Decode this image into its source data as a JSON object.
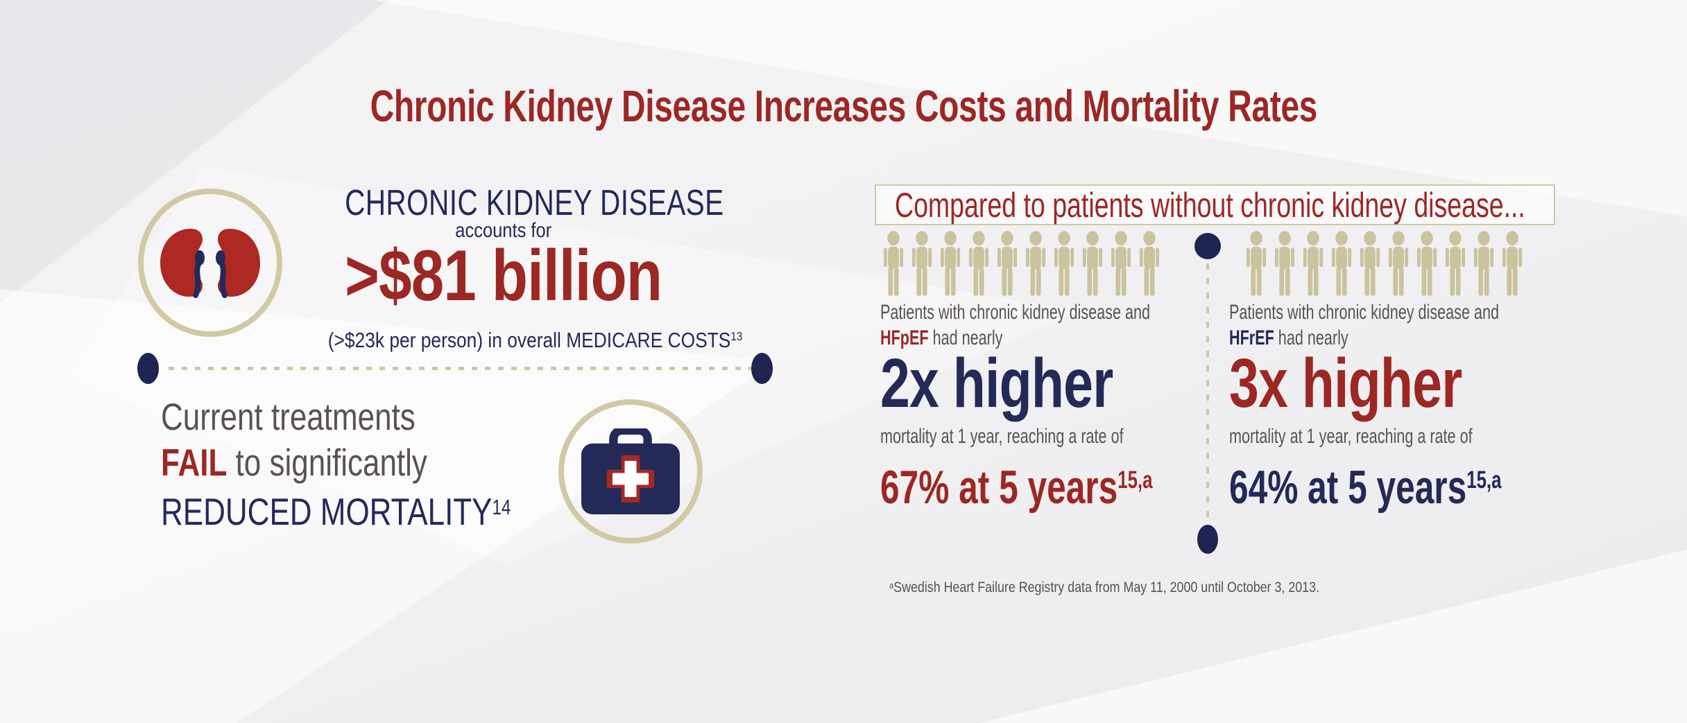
{
  "title": "Chronic Kidney Disease Increases Costs and Mortality Rates",
  "colors": {
    "accent_red": "#9C2723",
    "accent_navy": "#232A58",
    "body_gray": "#59524F",
    "tan": "#D0C7A2",
    "background": "#F1F1F3"
  },
  "icons": {
    "kidneys": "kidneys-icon",
    "medical_bag": "medical-bag-icon",
    "person": "person-icon"
  },
  "left_panel": {
    "ckd_heading": "CHRONIC KIDNEY DISEASE",
    "accounts_for": "accounts for",
    "big_cost": ">$81 billion",
    "cost_detail": "(>$23k per person) in overall MEDICARE COSTS",
    "cost_detail_sup": "13",
    "treatment_line1": "Current treatments",
    "treatment_fail": "FAIL",
    "treatment_line2_rest": " to significantly",
    "treatment_line3": "REDUCED MORTALITY",
    "treatment_line3_sup": "14"
  },
  "right_panel": {
    "box_heading": "Compared to patients without chronic kidney disease...",
    "person_icons": {
      "left_count": 10,
      "right_count": 10
    },
    "columns": [
      {
        "intro": "Patients with chronic kidney disease and",
        "term": "HFpEF",
        "intro_rest": " had nearly",
        "stat_big": "2x higher",
        "stat_detail": "mortality at 1 year, reaching a rate of",
        "stat_rate": "67% at 5 years",
        "stat_rate_sup": "15,a"
      },
      {
        "intro": "Patients with chronic kidney disease and",
        "term": "HFrEF",
        "intro_rest": " had nearly",
        "stat_big": "3x higher",
        "stat_detail": "mortality at 1 year, reaching a rate of",
        "stat_rate": "64% at 5 years",
        "stat_rate_sup": "15,a"
      }
    ],
    "footnote_sup": "a",
    "footnote": "Swedish Heart Failure Registry data from May 11, 2000 until October 3, 2013."
  }
}
